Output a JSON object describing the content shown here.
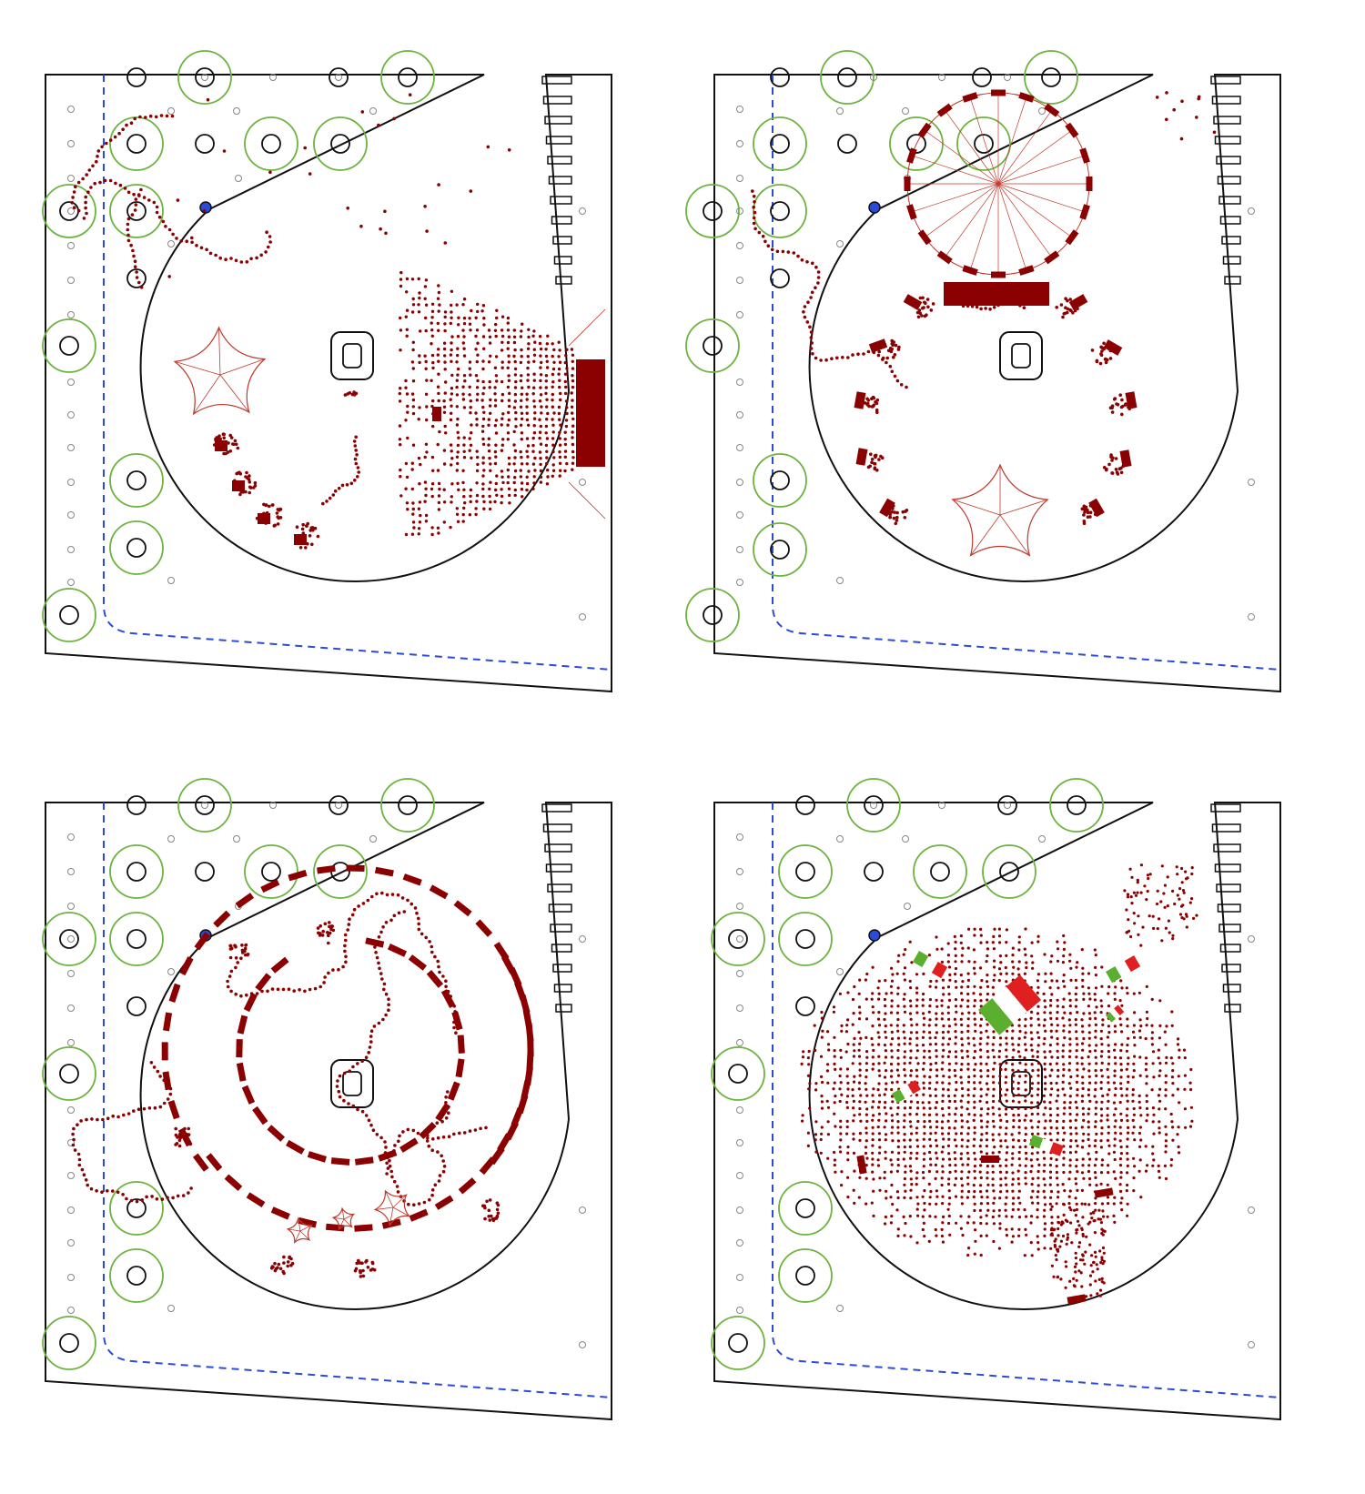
{
  "title": "",
  "colors": {
    "outline": "#111111",
    "tree_ring": "#6cb33f",
    "boundary_dashed": "#2a4bd7",
    "crowd": "#8b0000",
    "tent": "#c0392b",
    "light_post": "#888888",
    "marker_blue": "#2a4bd7",
    "flag_green": "#5aaf2f",
    "flag_white": "#ffffff",
    "flag_red": "#e02020"
  },
  "panels": [
    {
      "id": "panel-1",
      "scenario": "stage-concert",
      "features": [
        "stage",
        "crowd-fan",
        "tent-star",
        "kiosks"
      ]
    },
    {
      "id": "panel-2",
      "scenario": "ferris-wheel",
      "features": [
        "ferris-wheel",
        "tent-star",
        "ring-kiosks"
      ]
    },
    {
      "id": "panel-3",
      "scenario": "spiral-stalls",
      "features": [
        "spiral-stalls",
        "small-tents"
      ]
    },
    {
      "id": "panel-4",
      "scenario": "flag-celebration",
      "features": [
        "dense-crowd",
        "flags-green-white-red"
      ]
    }
  ]
}
